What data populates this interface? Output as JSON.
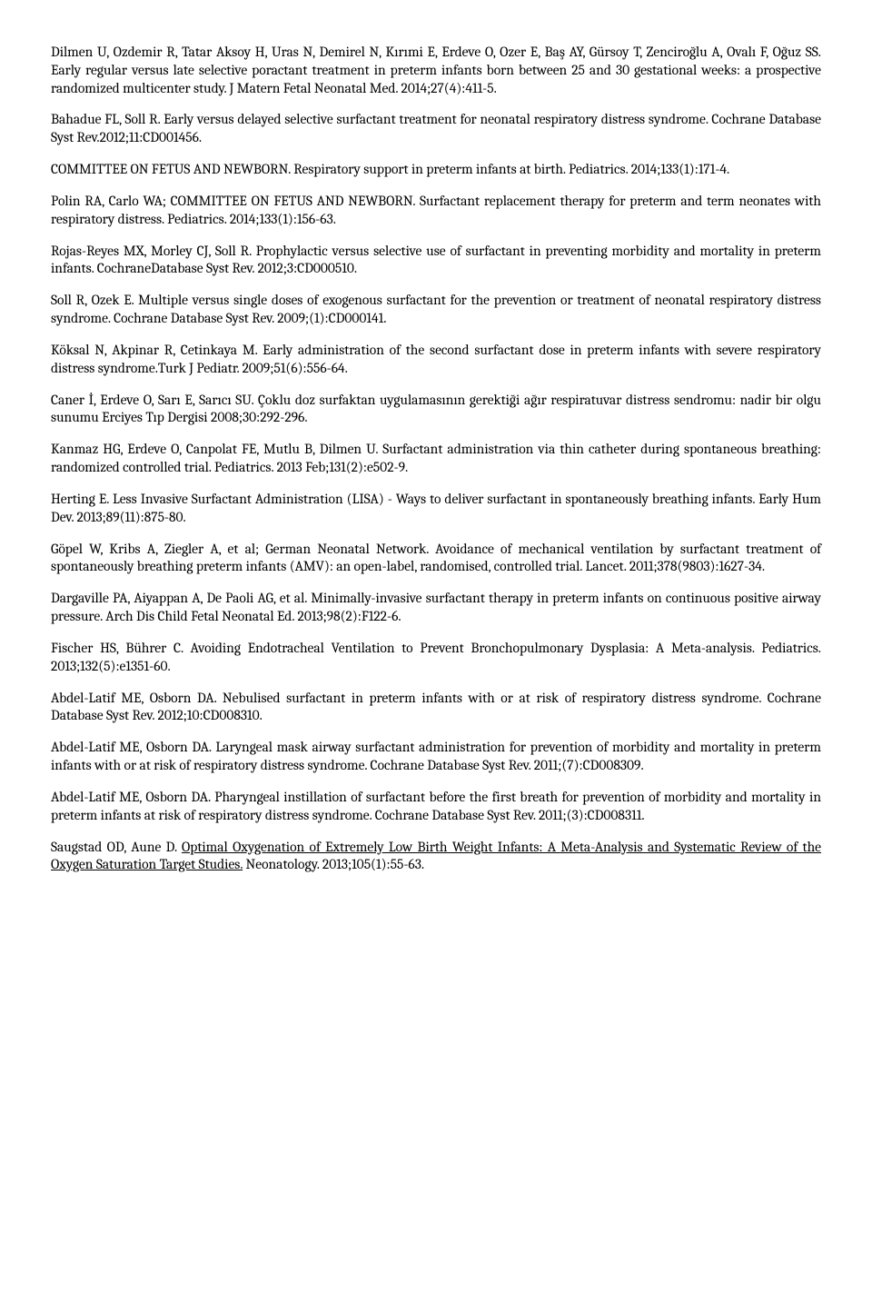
{
  "refs": [
    {
      "text": "Dilmen U, Ozdemir R, Tatar Aksoy H, Uras N, Demirel N, Kırımi E, Erdeve O, Ozer E, Baş AY, Gürsoy T, Zenciroğlu A, Ovalı F, Oğuz SS. Early regular versus late selective poractant treatment in preterm infants born between 25 and 30 gestational weeks: a prospective randomized multicenter study. J Matern Fetal Neonatal Med. 2014;27(4):411-5."
    },
    {
      "text": "Bahadue FL, Soll R. Early versus delayed selective surfactant treatment for neonatal respiratory distress syndrome. Cochrane Database Syst Rev.2012;11:CD001456."
    },
    {
      "text": "COMMITTEE ON FETUS AND NEWBORN. Respiratory support in preterm infants at birth. Pediatrics. 2014;133(1):171-4."
    },
    {
      "text": "Polin RA, Carlo WA; COMMITTEE ON FETUS AND NEWBORN. Surfactant replacement therapy for preterm and term neonates with respiratory distress. Pediatrics. 2014;133(1):156-63."
    },
    {
      "text": "Rojas-Reyes MX, Morley CJ, Soll R. Prophylactic versus selective use of surfactant in preventing morbidity and mortality in preterm infants. CochraneDatabase Syst Rev. 2012;3:CD000510."
    },
    {
      "text": "Soll R, Ozek E. Multiple versus single doses of exogenous surfactant for the prevention or treatment of neonatal respiratory distress syndrome. Cochrane Database Syst Rev. 2009;(1):CD000141."
    },
    {
      "text": "Köksal N, Akpinar R, Cetinkaya M. Early administration of the second surfactant dose in preterm infants with severe respiratory distress syndrome.Turk J Pediatr. 2009;51(6):556-64."
    },
    {
      "text": "Caner İ, Erdeve O, Sarı E, Sarıcı SU. Çoklu doz surfaktan uygulamasının gerektiği ağır respiratuvar distress sendromu: nadir bir olgu sunumu Erciyes Tıp Dergisi 2008;30:292-296."
    },
    {
      "text": "Kanmaz HG, Erdeve O, Canpolat FE, Mutlu B, Dilmen U. Surfactant administration via thin catheter during spontaneous breathing: randomized controlled trial. Pediatrics. 2013 Feb;131(2):e502-9."
    },
    {
      "text": "Herting E. Less Invasive Surfactant Administration (LISA) - Ways to deliver surfactant in spontaneously breathing infants. Early Hum Dev. 2013;89(11):875-80."
    },
    {
      "text": "Göpel W, Kribs A, Ziegler A, et al; German Neonatal Network. Avoidance of mechanical ventilation by surfactant treatment of spontaneously breathing preterm infants (AMV): an open-label, randomised, controlled trial. Lancet. 2011;378(9803):1627-34."
    },
    {
      "text": "Dargaville PA, Aiyappan A, De Paoli AG, et al. Minimally-invasive surfactant therapy in preterm infants on continuous positive airway pressure. Arch Dis Child Fetal Neonatal Ed. 2013;98(2):F122-6."
    },
    {
      "text": "Fischer HS, Bührer C. Avoiding Endotracheal Ventilation to Prevent Bronchopulmonary Dysplasia: A Meta-analysis. Pediatrics. 2013;132(5):e1351-60."
    },
    {
      "text": "Abdel-Latif ME, Osborn DA. Nebulised surfactant in preterm infants with or at risk of respiratory distress syndrome. Cochrane Database Syst Rev. 2012;10:CD008310."
    },
    {
      "text": "Abdel-Latif ME, Osborn DA. Laryngeal mask airway surfactant administration for prevention of morbidity and mortality in preterm infants with or at risk of respiratory distress syndrome. Cochrane Database Syst Rev. 2011;(7):CD008309."
    },
    {
      "text": "Abdel-Latif ME, Osborn DA. Pharyngeal instillation of surfactant before the first breath for prevention of morbidity and mortality in preterm infants at risk of respiratory distress syndrome. Cochrane Database Syst Rev. 2011;(3):CD008311."
    },
    {
      "prefix": "Saugstad OD, Aune D. ",
      "underlined": "Optimal Oxygenation of Extremely Low Birth Weight Infants: A Meta-Analysis and Systematic Review of the Oxygen Saturation Target Studies.",
      "suffix": " Neonatology. 2013;105(1):55-63."
    }
  ]
}
